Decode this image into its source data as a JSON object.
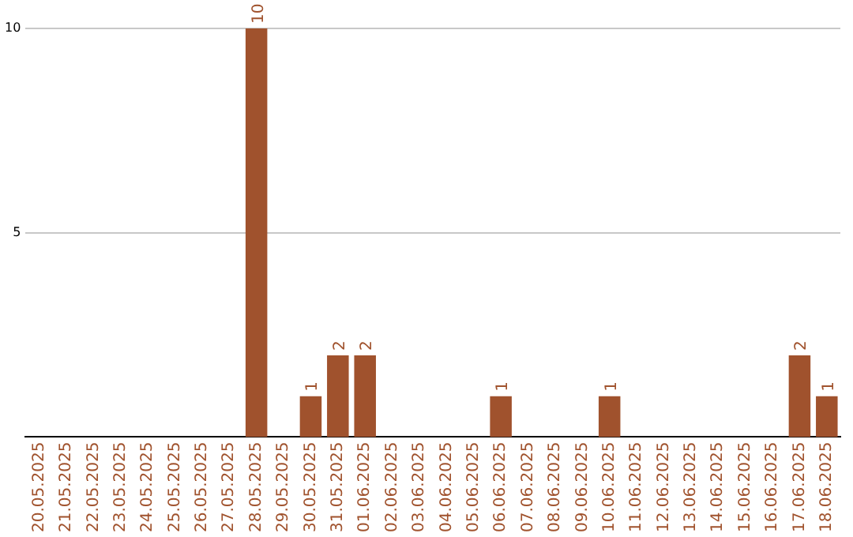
{
  "chart_data": {
    "type": "bar",
    "categories": [
      "20.05.2025",
      "21.05.2025",
      "22.05.2025",
      "23.05.2025",
      "24.05.2025",
      "25.05.2025",
      "26.05.2025",
      "27.05.2025",
      "28.05.2025",
      "29.05.2025",
      "30.05.2025",
      "31.05.2025",
      "01.06.2025",
      "02.06.2025",
      "03.06.2025",
      "04.06.2025",
      "05.06.2025",
      "06.06.2025",
      "07.06.2025",
      "08.06.2025",
      "09.06.2025",
      "10.06.2025",
      "11.06.2025",
      "12.06.2025",
      "13.06.2025",
      "14.06.2025",
      "15.06.2025",
      "16.06.2025",
      "17.06.2025",
      "18.06.2025"
    ],
    "values": [
      0,
      0,
      0,
      0,
      0,
      0,
      0,
      0,
      10,
      0,
      1,
      2,
      2,
      0,
      0,
      0,
      0,
      1,
      0,
      0,
      0,
      1,
      0,
      0,
      0,
      0,
      0,
      0,
      2,
      1
    ],
    "value_labels": [
      null,
      null,
      null,
      null,
      null,
      null,
      null,
      null,
      "10",
      null,
      "1",
      "2",
      "2",
      null,
      null,
      null,
      null,
      "1",
      null,
      null,
      null,
      "1",
      null,
      null,
      null,
      null,
      null,
      null,
      "2",
      "1"
    ],
    "color": "#a0522d",
    "ylim": [
      0,
      10
    ],
    "yticks": [
      5,
      10
    ],
    "grid": "y"
  }
}
